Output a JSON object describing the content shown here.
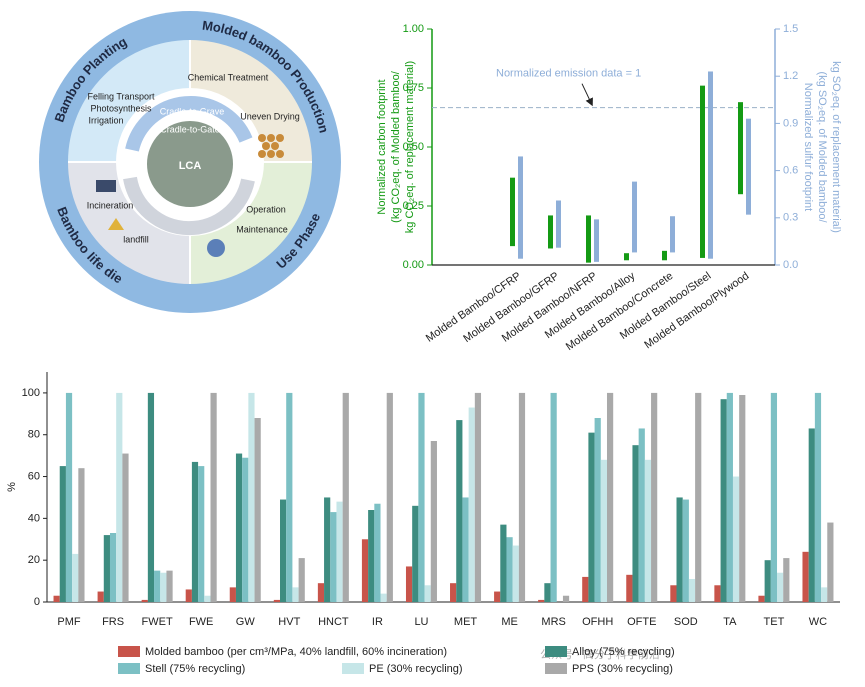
{
  "diagram": {
    "center": "LCA",
    "inner_arrows": [
      "Cradle-to-Grave",
      "Cradle-to-Gate"
    ],
    "stages": [
      {
        "title": "Bamboo Planting",
        "items": [
          "Felling Transport",
          "Photosynthesis",
          "Irrigation"
        ]
      },
      {
        "title": "Molded bamboo Production",
        "items": [
          "Chemical Treatment",
          "Uneven Drying"
        ]
      },
      {
        "title": "Use Phase",
        "items": [
          "Operation",
          "Maintenance"
        ]
      },
      {
        "title": "Bamboo life die",
        "items": [
          "Incineration",
          "landfill"
        ]
      }
    ]
  },
  "chart_data": [
    {
      "type": "range-bar",
      "y_label": [
        "Normalized carbon footprint",
        "(kg CO₂eq. of Molded bamboo/",
        "kg CO₂eq. of replacement material)"
      ],
      "y2_label": [
        "Normalized sulfur footprint",
        "(kg SO₂eq. of Molded bamboo/",
        "kg SO₂eq. of replacement material)"
      ],
      "categories": [
        "Molded Bamboo/CFRP",
        "Molded Bamboo/GFRP",
        "Molded Bamboo/NFRP",
        "Molded Bamboo/Alloy",
        "Molded Bamboo/Concrete",
        "Molded Bamboo/Steel",
        "Molded Bamboo/Plywood"
      ],
      "series": [
        {
          "color": "#149a14",
          "low": [
            0.08,
            0.07,
            0.01,
            0.02,
            0.02,
            0.03,
            0.3
          ],
          "high": [
            0.37,
            0.21,
            0.21,
            0.05,
            0.06,
            0.76,
            0.69
          ]
        },
        {
          "color": "#8eaed8",
          "axis": "y2",
          "low": [
            0.04,
            0.11,
            0.02,
            0.08,
            0.08,
            0.04,
            0.32
          ],
          "high": [
            0.69,
            0.41,
            0.29,
            0.53,
            0.31,
            1.23,
            0.93
          ]
        }
      ],
      "ylim": [
        0,
        1
      ],
      "yticks": [
        {
          "value": 0,
          "label": "0.00"
        },
        0.25,
        {
          "value": 0.5,
          "label": "0.50"
        },
        0.75,
        {
          "value": 1,
          "label": "1.00"
        }
      ],
      "y2lim": [
        0,
        1.5
      ],
      "y2ticks": [
        {
          "value": 0,
          "label": "0.0"
        },
        0.3,
        0.6,
        0.9,
        1.2,
        1.5
      ],
      "reference_line": {
        "value": 1,
        "axis": "y2",
        "label": "Normalized emission data = 1"
      }
    },
    {
      "type": "bar",
      "y_label": "%",
      "categories": [
        "PMF",
        "FRS",
        "FWET",
        "FWE",
        "GW",
        "HVT",
        "HNCT",
        "IR",
        "LU",
        "MET",
        "ME",
        "MRS",
        "OFHH",
        "OFTE",
        "SOD",
        "TA",
        "TET",
        "WC"
      ],
      "series": [
        {
          "name": "Molded bamboo (per cm³/MPa, 40% landfill, 60% incineration)",
          "color": "#c8544a",
          "values": [
            3,
            5,
            1,
            6,
            7,
            1,
            9,
            30,
            17,
            9,
            5,
            1,
            12,
            13,
            8,
            8,
            3,
            24
          ]
        },
        {
          "name": "Alloy (75% recycling)",
          "color": "#3d8c80",
          "values": [
            65,
            32,
            100,
            67,
            71,
            49,
            50,
            44,
            46,
            87,
            37,
            9,
            81,
            75,
            50,
            97,
            20,
            83
          ]
        },
        {
          "name": "Stell (75% recycling)",
          "color": "#7cc0c4",
          "values": [
            100,
            33,
            15,
            65,
            69,
            100,
            43,
            47,
            100,
            50,
            31,
            100,
            88,
            83,
            49,
            100,
            100,
            100
          ]
        },
        {
          "name": "PE (30% recycling)",
          "color": "#c6e6e8",
          "values": [
            23,
            100,
            14,
            3,
            100,
            7,
            48,
            4,
            8,
            93,
            27,
            0,
            68,
            68,
            11,
            60,
            14,
            7
          ]
        },
        {
          "name": "PPS (30% recycling)",
          "color": "#a9a9a9",
          "values": [
            64,
            71,
            15,
            100,
            88,
            21,
            100,
            100,
            77,
            100,
            100,
            3,
            100,
            100,
            100,
            99,
            21,
            38
          ]
        }
      ],
      "ylim": [
        0,
        110
      ],
      "yticks": [
        0,
        20,
        40,
        60,
        80,
        100
      ]
    }
  ],
  "watermark": "公众号 · 高分子科学前沿"
}
